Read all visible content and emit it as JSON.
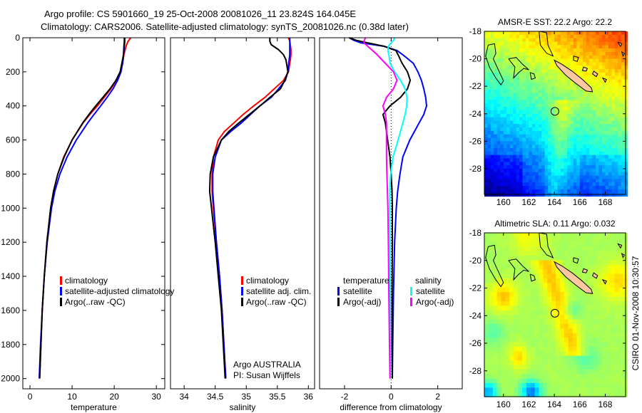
{
  "title": {
    "line1": "Argo profile: CS 5901660_19 25-Oct-2008 20081026_11 23.824S 164.045E",
    "line2": "Climatology: CARS2006. Satellite-adjusted climatology: synTS_20081026.nc (0.38d later)"
  },
  "side_text": "CSIRO 01-Nov-2008 10:30:57",
  "credit": {
    "line1": "Argo AUSTRALIA",
    "line2": "PI: Susan Wijffels"
  },
  "colors": {
    "climatology": "#ff0000",
    "satellite": "#0000ff",
    "argo": "#000000",
    "sal_satellite": "#00ffff",
    "sal_argo": "#ff00ff",
    "land": "#ffc8a0"
  },
  "chart_data": [
    {
      "type": "line",
      "xlabel": "temperature",
      "ylabel": "",
      "xlim": [
        -1.7,
        32
      ],
      "ylim": [
        0,
        2060
      ],
      "y_reversed": true,
      "xticks": [
        0,
        10,
        20,
        30
      ],
      "yticks": [
        0,
        200,
        400,
        600,
        800,
        1000,
        1200,
        1400,
        1600,
        1800,
        2000
      ],
      "legend": [
        "climatology",
        "satellite-adjusted climatology",
        "Argo(..raw -QC)"
      ],
      "depth": [
        0,
        25,
        50,
        100,
        150,
        200,
        250,
        300,
        350,
        400,
        450,
        500,
        600,
        700,
        800,
        900,
        1000,
        1200,
        1400,
        1600,
        1800,
        2000
      ],
      "series": [
        {
          "name": "climatology",
          "color": "#ff0000",
          "values": [
            23.9,
            23.2,
            22.8,
            22.3,
            22.0,
            21.5,
            20.5,
            19.2,
            17.6,
            16.0,
            14.2,
            12.6,
            10.0,
            8.0,
            6.6,
            5.6,
            4.9,
            4.0,
            3.4,
            2.9,
            2.6,
            2.3
          ]
        },
        {
          "name": "satellite-adjusted climatology",
          "color": "#0000ff",
          "values": [
            22.5,
            22.5,
            22.4,
            22.2,
            22.0,
            21.6,
            20.8,
            19.7,
            18.3,
            16.8,
            15.2,
            13.7,
            11.0,
            8.8,
            7.1,
            5.9,
            5.1,
            4.1,
            3.4,
            2.9,
            2.5,
            2.2
          ]
        },
        {
          "name": "Argo(..raw -QC)",
          "color": "#000000",
          "values": [
            22.4,
            22.4,
            22.3,
            22.2,
            21.8,
            21.4,
            20.4,
            19.0,
            17.3,
            15.6,
            14.0,
            12.5,
            10.0,
            8.1,
            6.6,
            5.6,
            4.9,
            4.0,
            3.4,
            2.9,
            2.6,
            2.3
          ]
        }
      ]
    },
    {
      "type": "line",
      "xlabel": "salinity",
      "xlim": [
        33.78,
        36.1
      ],
      "ylim": [
        0,
        2060
      ],
      "y_reversed": true,
      "xticks": [
        34,
        34.5,
        35,
        35.5,
        36
      ],
      "legend": [
        "climatology",
        "satellite adj. clim.",
        "Argo(..raw -QC)"
      ],
      "depth": [
        0,
        20,
        40,
        70,
        100,
        130,
        200,
        250,
        300,
        350,
        400,
        450,
        500,
        550,
        600,
        700,
        800,
        900,
        1000,
        1200,
        1400,
        1600,
        1800,
        2000
      ],
      "series": [
        {
          "name": "climatology",
          "color": "#ff0000",
          "values": [
            35.68,
            35.7,
            35.71,
            35.72,
            35.72,
            35.71,
            35.68,
            35.6,
            35.45,
            35.3,
            35.12,
            34.95,
            34.8,
            34.65,
            34.55,
            34.47,
            34.45,
            34.45,
            34.47,
            34.52,
            34.57,
            34.61,
            34.64,
            34.67
          ]
        },
        {
          "name": "satellite adj. clim.",
          "color": "#0000ff",
          "values": [
            35.7,
            35.7,
            35.7,
            35.7,
            35.7,
            35.69,
            35.67,
            35.63,
            35.52,
            35.4,
            35.22,
            35.07,
            34.92,
            34.75,
            34.6,
            34.5,
            34.46,
            34.46,
            34.48,
            34.52,
            34.57,
            34.61,
            34.64,
            34.67
          ]
        },
        {
          "name": "Argo(..raw -QC)",
          "color": "#000000",
          "values": [
            35.38,
            35.38,
            35.4,
            35.52,
            35.6,
            35.64,
            35.67,
            35.62,
            35.55,
            35.38,
            35.22,
            35.05,
            34.88,
            34.72,
            34.6,
            34.47,
            34.42,
            34.41,
            34.44,
            34.5,
            34.55,
            34.6,
            34.63,
            34.66
          ]
        }
      ]
    },
    {
      "type": "line",
      "xlabel": "difference from climatology",
      "xlim": [
        -3.07,
        3.05
      ],
      "ylim": [
        0,
        2060
      ],
      "y_reversed": true,
      "xticks": [
        -2,
        0,
        2
      ],
      "zero_line": true,
      "legend_headers": [
        "temperature",
        "salinity"
      ],
      "legend": [
        "satellite",
        "Argo(-adj)",
        "satellite",
        "Argo(-adj)"
      ],
      "depth": [
        0,
        15,
        30,
        50,
        75,
        100,
        150,
        200,
        250,
        300,
        350,
        400,
        450,
        500,
        600,
        700,
        800,
        900,
        1000,
        1200,
        1500,
        1800,
        2000
      ],
      "series": [
        {
          "name": "temperature satellite",
          "color": "#0000ff",
          "values": [
            -1.8,
            -1.6,
            -1.3,
            -0.3,
            0.25,
            0.5,
            0.95,
            1.15,
            1.3,
            1.4,
            1.48,
            1.52,
            1.4,
            1.2,
            0.8,
            0.5,
            0.38,
            0.28,
            0.22,
            0.15,
            0.1,
            0.07,
            0.05
          ]
        },
        {
          "name": "temperature Argo(-adj)",
          "color": "#000000",
          "values": [
            -1.8,
            -1.5,
            -1.0,
            -0.3,
            0.2,
            0.3,
            0.47,
            0.7,
            0.82,
            0.7,
            0.4,
            -0.05,
            -0.35,
            -0.25,
            -0.15,
            -0.05,
            0.0,
            0.04,
            0.05,
            0.05,
            0.04,
            0.04,
            0.05
          ]
        },
        {
          "name": "salinity satellite",
          "color": "#00ffff",
          "values": [
            0.15,
            0.1,
            0.0,
            -0.12,
            -0.14,
            -0.1,
            -0.04,
            0.15,
            0.4,
            0.6,
            0.68,
            0.67,
            0.6,
            0.5,
            0.3,
            0.08,
            -0.02,
            -0.06,
            -0.06,
            -0.05,
            -0.04,
            -0.03,
            -0.03
          ]
        },
        {
          "name": "salinity Argo(-adj)",
          "color": "#ff00ff",
          "values": [
            -1.1,
            -1.15,
            -1.16,
            -1.0,
            -0.8,
            -0.6,
            -0.25,
            0.1,
            0.25,
            0.1,
            -0.2,
            -0.35,
            -0.25,
            -0.2,
            -0.2,
            -0.2,
            -0.18,
            -0.16,
            -0.14,
            -0.12,
            -0.1,
            -0.07,
            -0.05
          ]
        }
      ]
    },
    {
      "type": "heatmap",
      "title": "AMSR-E SST: 22.2 Argo: 22.2",
      "field": "sst",
      "xlim": [
        158.5,
        169.6
      ],
      "ylim": [
        -29.87,
        -18
      ],
      "xticks": [
        160,
        162,
        164,
        166,
        168
      ],
      "yticks": [
        -18,
        -20,
        -22,
        -24,
        -26,
        -28
      ],
      "float_position": [
        164.045,
        -23.824
      ]
    },
    {
      "type": "heatmap",
      "title": "Altimetric SLA: 0.11 Argo: 0.032",
      "field": "sla",
      "xlim": [
        158.5,
        169.6
      ],
      "ylim": [
        -29.87,
        -18
      ],
      "xticks": [
        160,
        162,
        164,
        166,
        168
      ],
      "yticks": [
        -18,
        -20,
        -22,
        -24,
        -26,
        -28
      ],
      "float_position": [
        164.045,
        -23.824
      ]
    }
  ]
}
